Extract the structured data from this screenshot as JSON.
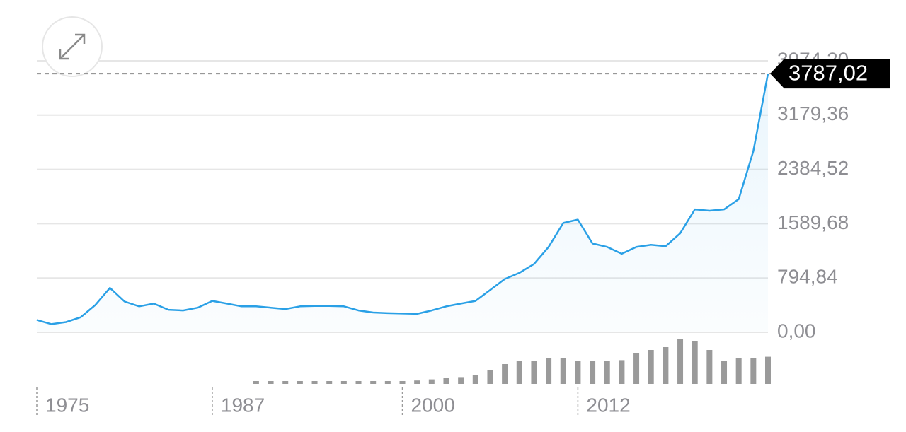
{
  "chart_data": {
    "type": "line",
    "color": "#2aa0e6",
    "x": [
      1975,
      1976,
      1977,
      1978,
      1979,
      1980,
      1981,
      1982,
      1983,
      1984,
      1985,
      1986,
      1987,
      1988,
      1989,
      1990,
      1991,
      1992,
      1993,
      1994,
      1995,
      1996,
      1997,
      1998,
      1999,
      2000,
      2001,
      2002,
      2003,
      2004,
      2005,
      2006,
      2007,
      2008,
      2009,
      2010,
      2011,
      2012,
      2013,
      2014,
      2015,
      2016,
      2017,
      2018,
      2019,
      2020,
      2021,
      2022,
      2023,
      2024,
      2025
    ],
    "values": [
      180,
      120,
      150,
      220,
      400,
      650,
      450,
      380,
      420,
      330,
      320,
      360,
      460,
      420,
      380,
      380,
      360,
      340,
      380,
      385,
      385,
      380,
      320,
      290,
      280,
      275,
      270,
      320,
      380,
      420,
      460,
      620,
      780,
      870,
      1000,
      1250,
      1600,
      1650,
      1300,
      1250,
      1150,
      1250,
      1280,
      1260,
      1450,
      1800,
      1780,
      1800,
      1950,
      2650,
      3787.02
    ],
    "last_price": {
      "value": 3787.02,
      "label": "3787,02"
    },
    "xlim": [
      1975,
      2025
    ],
    "xticks": [
      1975,
      1987,
      2000,
      2012
    ],
    "ylim": [
      0,
      3974.2
    ],
    "yticks": [
      {
        "value": 0,
        "label": "0,00"
      },
      {
        "value": 794.84,
        "label": "794,84"
      },
      {
        "value": 1589.68,
        "label": "1589,68"
      },
      {
        "value": 2384.52,
        "label": "2384,52"
      },
      {
        "value": 3179.36,
        "label": "3179,36"
      },
      {
        "value": 3974.2,
        "label": "3974,20"
      }
    ],
    "grid": true,
    "volume": {
      "color": "#9a9a9a",
      "x": [
        1990,
        1991,
        1992,
        1993,
        1994,
        1995,
        1996,
        1997,
        1998,
        1999,
        2000,
        2001,
        2002,
        2003,
        2004,
        2005,
        2006,
        2007,
        2008,
        2009,
        2010,
        2011,
        2012,
        2013,
        2014,
        2015,
        2016,
        2017,
        2018,
        2019,
        2020,
        2021,
        2022,
        2023,
        2024,
        2025
      ],
      "values": [
        5,
        5,
        5,
        5,
        5,
        5,
        5,
        5,
        5,
        5,
        5,
        6,
        8,
        10,
        12,
        15,
        25,
        35,
        40,
        40,
        45,
        45,
        40,
        40,
        40,
        42,
        55,
        60,
        65,
        80,
        75,
        60,
        40,
        45,
        45,
        48
      ],
      "ylim": [
        0,
        100
      ]
    }
  }
}
